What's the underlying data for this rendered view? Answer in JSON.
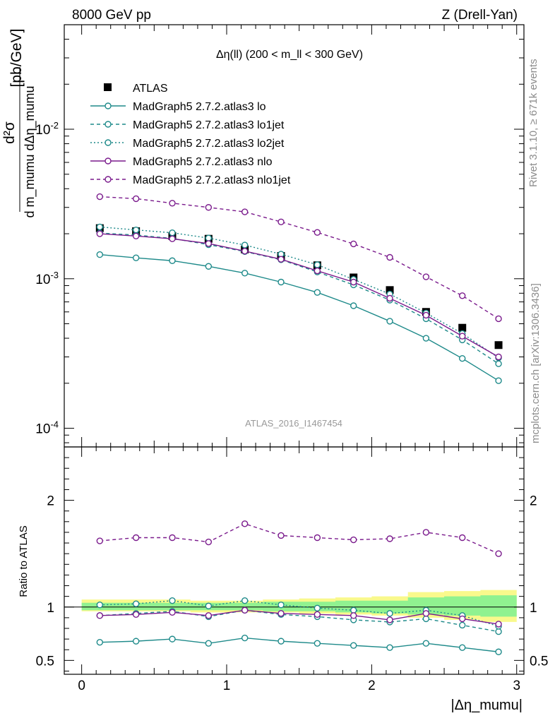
{
  "header": {
    "left": "8000 GeV pp",
    "right": "Z (Drell-Yan)"
  },
  "side_labels": {
    "rivet": "Rivet 3.1.10, ≥ 671k events",
    "mcplots": "mcplots.cern.ch [arXiv:1306.3436]"
  },
  "colors": {
    "data": "#000000",
    "teal": "#1e8a8a",
    "purple": "#7a1a8c",
    "band_yellow": "#f9f98c",
    "band_green": "#90f290"
  },
  "chart_data": {
    "type": "line",
    "title": "Δη(ll) (200 < m_ll < 300 GeV)",
    "watermark": "ATLAS_2016_I1467454",
    "ylabel": "d²σ / d m_mumu dΔη_mumu [pb/GeV]",
    "ylabel_parts": {
      "numerator": "d²σ",
      "denominator": "d m_mumu dΔη_mumu",
      "unit": "[pb/GeV]"
    },
    "xlabel": "|Δη_mumu|",
    "xlim": [
      -0.12,
      3.05
    ],
    "xticks": [
      "0",
      "1",
      "2",
      "3"
    ],
    "ylim_main": [
      7.5e-05,
      0.05
    ],
    "ylog": true,
    "yticks_main": [
      "10^-4",
      "10^-3",
      "10^-2"
    ],
    "ratio_label": "Ratio to ATLAS",
    "ylim_ratio": [
      0.37,
      2.5
    ],
    "yticks_ratio": [
      "0.5",
      "1",
      "2"
    ],
    "x": [
      0.125,
      0.375,
      0.625,
      0.875,
      1.125,
      1.375,
      1.625,
      1.875,
      2.125,
      2.375,
      2.625,
      2.875
    ],
    "series": [
      {
        "name": "ATLAS",
        "kind": "data",
        "values": [
          0.00218,
          0.00208,
          0.00193,
          0.00185,
          0.00157,
          0.00142,
          0.00123,
          0.00102,
          0.00084,
          0.0006,
          0.00047,
          0.00036
        ],
        "ratio": [
          1,
          1,
          1,
          1,
          1,
          1,
          1,
          1,
          1,
          1,
          1,
          1
        ]
      },
      {
        "name": "MadGraph5 2.7.2.atlas3 lo",
        "kind": "mc",
        "color": "teal",
        "dash": "solid",
        "values": [
          0.00145,
          0.00138,
          0.00132,
          0.00121,
          0.00109,
          0.00095,
          0.00081,
          0.00066,
          0.00052,
          0.0004,
          0.000293,
          0.000208
        ],
        "ratio": [
          0.67,
          0.68,
          0.7,
          0.66,
          0.71,
          0.68,
          0.66,
          0.64,
          0.62,
          0.66,
          0.62,
          0.58
        ]
      },
      {
        "name": "MadGraph5 2.7.2.atlas3 lo1jet",
        "kind": "mc",
        "color": "teal",
        "dash": "dashed",
        "values": [
          0.00202,
          0.00196,
          0.00186,
          0.00169,
          0.00152,
          0.00134,
          0.00111,
          0.00091,
          0.00072,
          0.00054,
          0.00039,
          0.00027
        ],
        "ratio": [
          0.92,
          0.94,
          0.96,
          0.91,
          0.97,
          0.93,
          0.91,
          0.88,
          0.86,
          0.89,
          0.83,
          0.77
        ]
      },
      {
        "name": "MadGraph5 2.7.2.atlas3 lo2jet",
        "kind": "mc",
        "color": "teal",
        "dash": "dotted",
        "values": [
          0.00222,
          0.00212,
          0.00203,
          0.00187,
          0.00168,
          0.00146,
          0.00124,
          0.00099,
          0.00079,
          0.00059,
          0.00043,
          0.000296
        ],
        "ratio": [
          1.02,
          1.03,
          1.06,
          1.01,
          1.06,
          1.02,
          0.99,
          0.97,
          0.94,
          0.97,
          0.92,
          0.82
        ]
      },
      {
        "name": "MadGraph5 2.7.2.atlas3 nlo",
        "kind": "mc",
        "color": "purple",
        "dash": "solid",
        "values": [
          0.002,
          0.00193,
          0.00185,
          0.00172,
          0.00153,
          0.00135,
          0.00113,
          0.00095,
          0.00074,
          0.00057,
          0.000413,
          0.0003
        ],
        "ratio": [
          0.92,
          0.93,
          0.95,
          0.92,
          0.97,
          0.94,
          0.93,
          0.92,
          0.88,
          0.94,
          0.89,
          0.84
        ]
      },
      {
        "name": "MadGraph5 2.7.2.atlas3 nlo1jet",
        "kind": "mc",
        "color": "purple",
        "dash": "dashed",
        "values": [
          0.00354,
          0.00343,
          0.0032,
          0.003,
          0.0028,
          0.0024,
          0.00204,
          0.00171,
          0.00139,
          0.00103,
          0.00077,
          0.00054
        ],
        "ratio": [
          1.62,
          1.65,
          1.65,
          1.61,
          1.78,
          1.67,
          1.65,
          1.63,
          1.64,
          1.7,
          1.65,
          1.5
        ]
      }
    ],
    "bands": {
      "total_upper": [
        1.07,
        1.07,
        1.07,
        1.06,
        1.06,
        1.07,
        1.08,
        1.09,
        1.1,
        1.14,
        1.15,
        1.16
      ],
      "total_lower": [
        0.96,
        0.96,
        0.96,
        0.95,
        0.95,
        0.95,
        0.94,
        0.93,
        0.92,
        0.9,
        0.88,
        0.86
      ],
      "stat_upper": [
        1.04,
        1.04,
        1.04,
        1.04,
        1.04,
        1.05,
        1.05,
        1.06,
        1.06,
        1.09,
        1.1,
        1.11
      ],
      "stat_lower": [
        0.97,
        0.97,
        0.97,
        0.97,
        0.97,
        0.96,
        0.96,
        0.95,
        0.94,
        0.93,
        0.92,
        0.91
      ]
    },
    "legend_position": "top-left"
  }
}
